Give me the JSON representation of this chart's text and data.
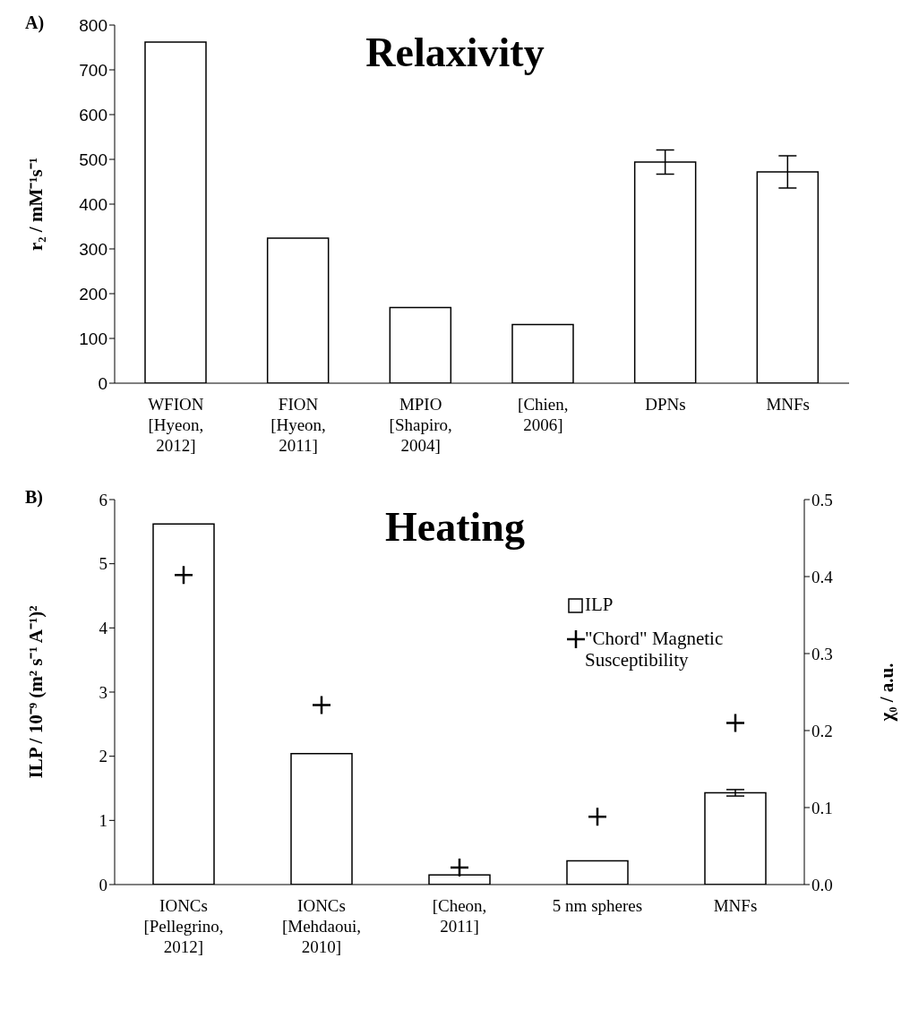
{
  "chart_data": [
    {
      "type": "bar",
      "title": "Relaxivity",
      "annotations": [
        "A)"
      ],
      "ylabel": "r₂ / mM⁻¹s⁻¹",
      "categories": [
        "WFION\n[Hyeon,\n2012]",
        "FION\n[Hyeon,\n2011]",
        "MPIO\n[Shapiro,\n2004]",
        "[Chien,\n2006]",
        "DPNs",
        "MNFs"
      ],
      "values": [
        762,
        324,
        169,
        131,
        494,
        472
      ],
      "errors": [
        null,
        null,
        null,
        null,
        27,
        36
      ],
      "color": "#ffffff",
      "ylim": [
        0,
        800
      ],
      "yticks": [
        0,
        100,
        200,
        300,
        400,
        500,
        600,
        700,
        800
      ],
      "legend": false
    },
    {
      "type": "bar",
      "title": "Heating",
      "annotations": [
        "B)"
      ],
      "ylabel": "ILP / 10⁻⁹ (m² s⁻¹ A⁻¹)²",
      "y2label": "χ₀ / a.u.",
      "categories": [
        "IONCs\n[Pellegrino,\n2012]",
        "IONCs\n[Mehdaoui,\n2010]",
        "[Cheon,\n2011]",
        "5 nm spheres",
        "MNFs"
      ],
      "series": [
        {
          "name": "ILP",
          "type": "bar",
          "color": "#ffffff",
          "values": [
            5.62,
            2.04,
            0.15,
            0.37,
            1.43
          ],
          "errors": [
            null,
            null,
            null,
            null,
            0.05
          ]
        },
        {
          "name": "\"Chord\" Magnetic Susceptibility",
          "type": "scatter",
          "axis": "y2",
          "color": "#000000",
          "values": [
            0.402,
            0.233,
            0.022,
            0.088,
            0.21
          ]
        }
      ],
      "marker": "cross",
      "ylim": [
        0,
        6
      ],
      "yticks": [
        0,
        1,
        2,
        3,
        4,
        5,
        6
      ],
      "y2lim": [
        0,
        0.5
      ],
      "y2ticks": [
        {
          "value": 0,
          "label": "0.0"
        },
        0.1,
        0.2,
        0.3,
        0.4,
        0.5
      ],
      "legend": "top right"
    }
  ]
}
